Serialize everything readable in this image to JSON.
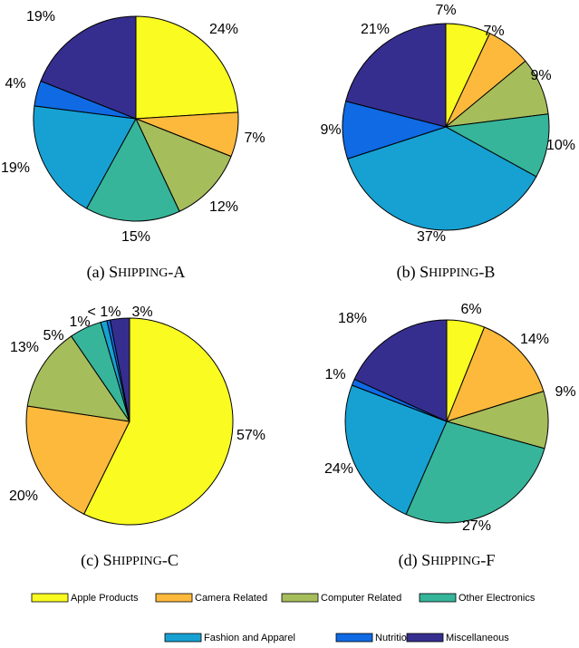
{
  "chart_data": [
    {
      "type": "pie",
      "caption_prefix": "(a)",
      "caption_name": "Shipping-A",
      "slices": [
        {
          "category": "Apple Products",
          "value": 24,
          "label": "24%"
        },
        {
          "category": "Camera Related",
          "value": 7,
          "label": "7%"
        },
        {
          "category": "Computer Related",
          "value": 12,
          "label": "12%"
        },
        {
          "category": "Other Electronics",
          "value": 15,
          "label": "15%"
        },
        {
          "category": "Fashion and Apparel",
          "value": 19,
          "label": "19%"
        },
        {
          "category": "Nutrition",
          "value": 4,
          "label": "4%"
        },
        {
          "category": "Miscellaneous",
          "value": 19,
          "label": "19%"
        }
      ]
    },
    {
      "type": "pie",
      "caption_prefix": "(b)",
      "caption_name": "Shipping-B",
      "slices": [
        {
          "category": "Apple Products",
          "value": 7,
          "label": "7%"
        },
        {
          "category": "Camera Related",
          "value": 7,
          "label": "7%"
        },
        {
          "category": "Computer Related",
          "value": 9,
          "label": "9%"
        },
        {
          "category": "Other Electronics",
          "value": 10,
          "label": "10%"
        },
        {
          "category": "Fashion and Apparel",
          "value": 37,
          "label": "37%"
        },
        {
          "category": "Nutrition",
          "value": 9,
          "label": "9%"
        },
        {
          "category": "Miscellaneous",
          "value": 21,
          "label": "21%"
        }
      ]
    },
    {
      "type": "pie",
      "caption_prefix": "(c)",
      "caption_name": "Shipping-C",
      "slices": [
        {
          "category": "Apple Products",
          "value": 57,
          "label": "57%"
        },
        {
          "category": "Camera Related",
          "value": 20,
          "label": "20%"
        },
        {
          "category": "Computer Related",
          "value": 13,
          "label": "13%"
        },
        {
          "category": "Other Electronics",
          "value": 5,
          "label": "5%"
        },
        {
          "category": "Fashion and Apparel",
          "value": 1,
          "label": "1%"
        },
        {
          "category": "Nutrition",
          "value": 0.5,
          "label": "< 1%"
        },
        {
          "category": "Miscellaneous",
          "value": 3,
          "label": "3%"
        }
      ]
    },
    {
      "type": "pie",
      "caption_prefix": "(d)",
      "caption_name": "Shipping-F",
      "slices": [
        {
          "category": "Apple Products",
          "value": 6,
          "label": "6%"
        },
        {
          "category": "Camera Related",
          "value": 14,
          "label": "14%"
        },
        {
          "category": "Computer Related",
          "value": 9,
          "label": "9%"
        },
        {
          "category": "Other Electronics",
          "value": 27,
          "label": "27%"
        },
        {
          "category": "Fashion and Apparel",
          "value": 24,
          "label": "24%"
        },
        {
          "category": "Nutrition",
          "value": 1,
          "label": "1%"
        },
        {
          "category": "Miscellaneous",
          "value": 18,
          "label": "18%"
        }
      ]
    }
  ],
  "legend": {
    "placement": "bottom",
    "items": [
      {
        "label": "Apple Products",
        "color": "#f9fb21"
      },
      {
        "label": "Camera Related",
        "color": "#fcb93c"
      },
      {
        "label": "Computer Related",
        "color": "#a6bd5c"
      },
      {
        "label": "Other Electronics",
        "color": "#36b59a"
      },
      {
        "label": "Fashion and Apparel",
        "color": "#17a1d3"
      },
      {
        "label": "Nutrition",
        "color": "#0f6ae3"
      },
      {
        "label": "Miscellaneous",
        "color": "#362e8f"
      }
    ]
  }
}
